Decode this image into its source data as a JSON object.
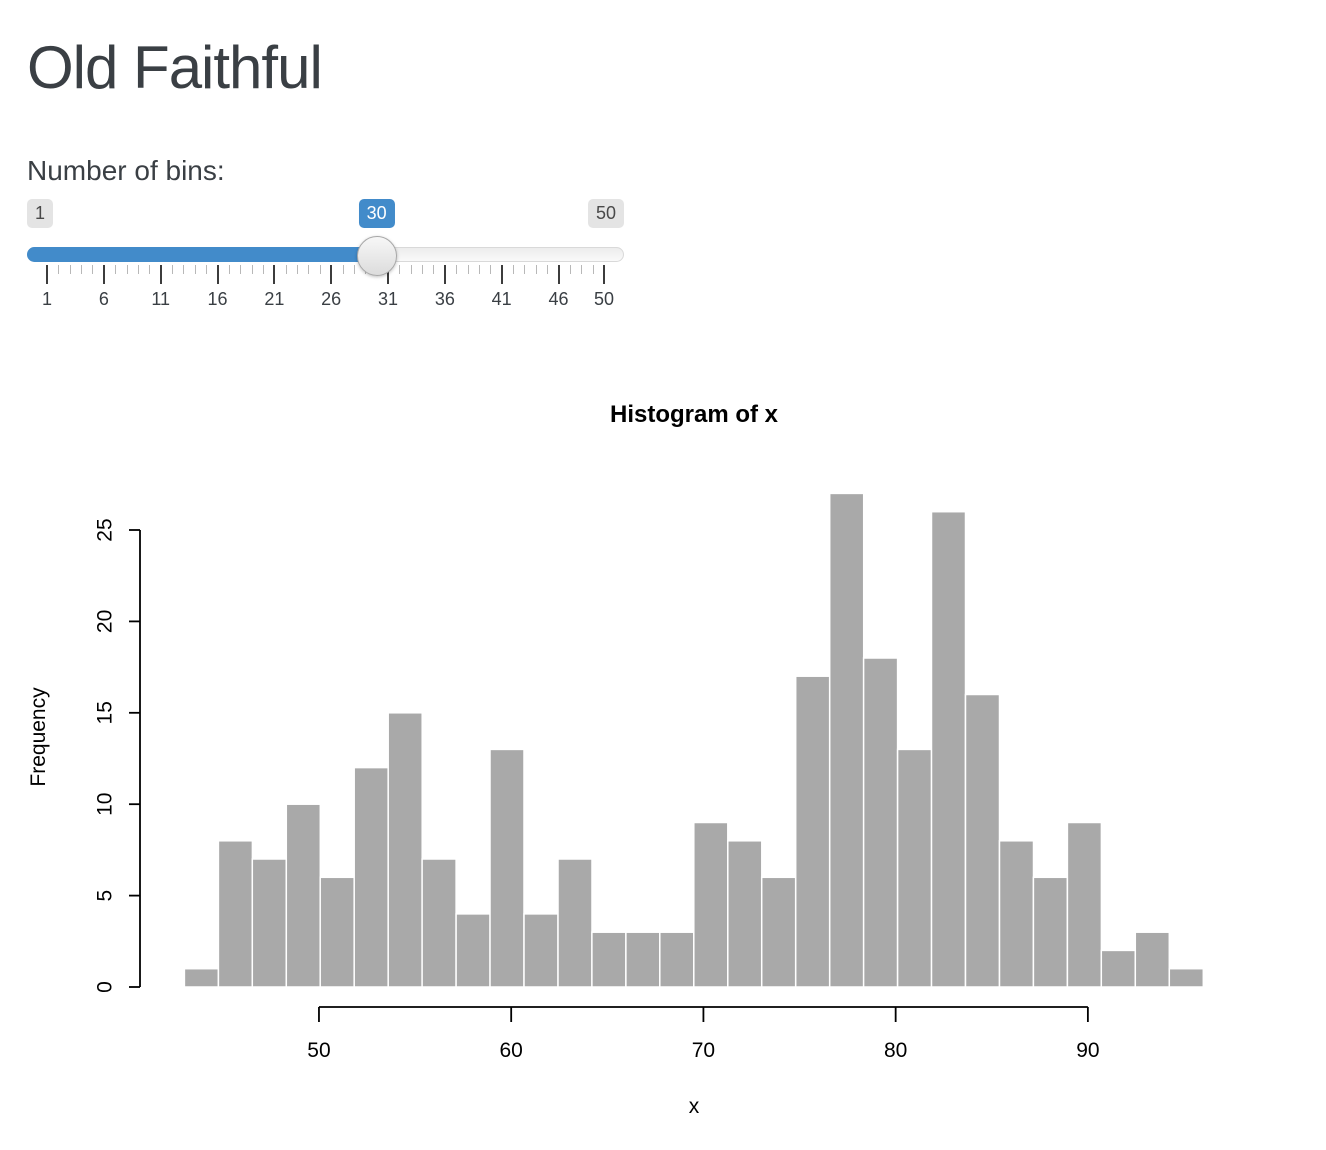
{
  "page": {
    "title": "Old Faithful"
  },
  "slider": {
    "label": "Number of bins:",
    "min": 1,
    "max": 50,
    "value": 30,
    "min_label": "1",
    "max_label": "50",
    "value_label": "30",
    "grid_major": [
      1,
      6,
      11,
      16,
      21,
      26,
      31,
      36,
      41,
      46,
      50
    ],
    "accent_color": "#428bca"
  },
  "chart_data": {
    "type": "bar",
    "title": "Histogram of x",
    "xlabel": "x",
    "ylabel": "Frequency",
    "bin_start": 43,
    "bin_end": 96,
    "bin_count": 30,
    "counts": [
      1,
      8,
      7,
      10,
      6,
      12,
      15,
      7,
      4,
      13,
      4,
      7,
      3,
      3,
      3,
      9,
      8,
      6,
      17,
      27,
      18,
      13,
      26,
      16,
      8,
      6,
      9,
      2,
      3,
      1
    ],
    "x_ticks": [
      50,
      60,
      70,
      80,
      90
    ],
    "y_ticks": [
      0,
      5,
      10,
      15,
      20,
      25
    ],
    "xlim": [
      43,
      96
    ],
    "ylim": [
      0,
      27
    ],
    "grid": false,
    "legend_position": "none",
    "bar_fill": "#A9A9A9",
    "bar_border": "#FFFFFF"
  }
}
